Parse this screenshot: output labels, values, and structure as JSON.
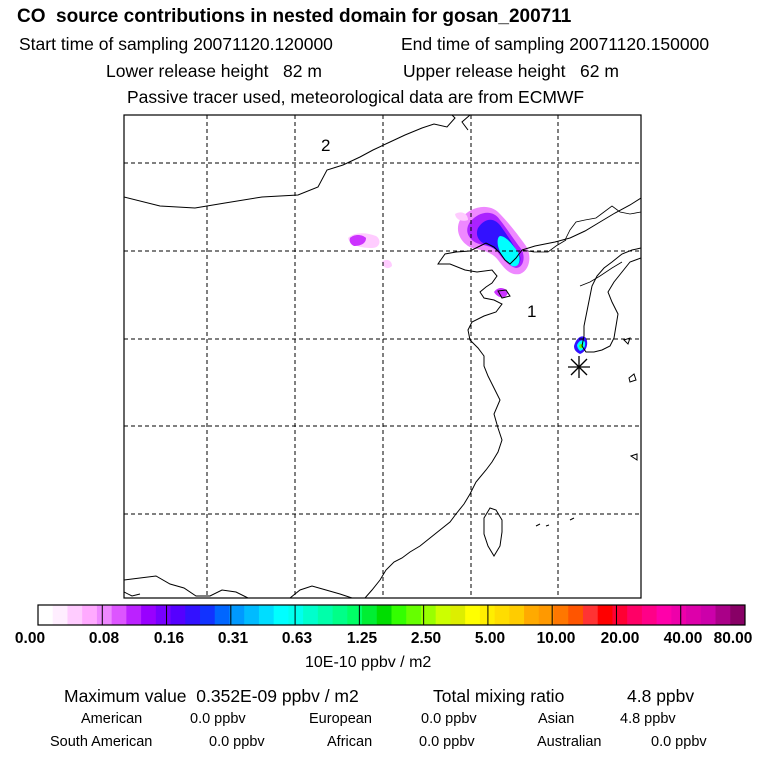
{
  "header": {
    "title": "CO  source contributions in nested domain for gosan_200711",
    "start_label": "Start time of sampling 20071120.120000",
    "end_label": "End time of sampling 20071120.150000",
    "lower_label": "Lower release height   82 m",
    "upper_label": "Upper release height   62 m",
    "tracer_note": "Passive tracer used, meteorological data are from ECMWF"
  },
  "map": {
    "domain_markers": [
      "2",
      "1"
    ],
    "receptor": "gosan"
  },
  "colorbar": {
    "labels": [
      "0.00",
      "0.08",
      "0.16",
      "0.31",
      "0.63",
      "1.25",
      "2.50",
      "5.00",
      "10.00",
      "20.00",
      "40.00",
      "80.00"
    ],
    "unit": "10E-10 ppbv / m2",
    "colors": [
      "#ffffff",
      "#ffeeff",
      "#ffccff",
      "#ffaaff",
      "#ee88ff",
      "#dd55ff",
      "#bb22ff",
      "#9900ff",
      "#7700ff",
      "#5500ff",
      "#3311ff",
      "#1133ff",
      "#0066ff",
      "#0099ff",
      "#00bbff",
      "#00ddff",
      "#00ffff",
      "#00ffee",
      "#00ffcc",
      "#00ffaa",
      "#00ff88",
      "#00ff66",
      "#00ee33",
      "#00dd00",
      "#33ff00",
      "#66ff00",
      "#99ff00",
      "#ccff00",
      "#ddee00",
      "#ffff00",
      "#ffee00",
      "#ffdd00",
      "#ffcc00",
      "#ffaa00",
      "#ff9900",
      "#ff7700",
      "#ff5500",
      "#ff3333",
      "#ff0000",
      "#ff0033",
      "#ff0066",
      "#ff0088",
      "#ff00aa",
      "#ee00aa",
      "#dd00aa",
      "#cc00aa",
      "#aa0088",
      "#880066"
    ]
  },
  "footer": {
    "max_label": "Maximum value  0.352E-09 ppbv / m2",
    "total_label": "Total mixing ratio",
    "total_value": "4.8 ppbv",
    "regions": [
      {
        "name": "American",
        "value": "0.0 ppbv"
      },
      {
        "name": "European",
        "value": "0.0 ppbv"
      },
      {
        "name": "Asian",
        "value": "4.8 ppbv"
      },
      {
        "name": "South American",
        "value": "0.0 ppbv"
      },
      {
        "name": "African",
        "value": "0.0 ppbv"
      },
      {
        "name": "Australian",
        "value": "0.0 ppbv"
      }
    ]
  }
}
